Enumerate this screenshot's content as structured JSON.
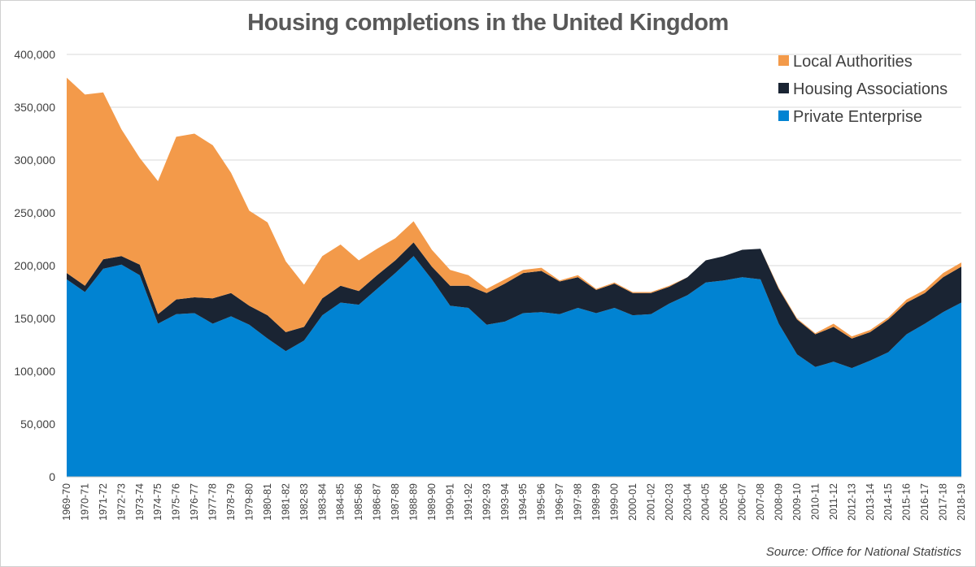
{
  "chart_data": {
    "type": "area",
    "stacked": true,
    "title": "Housing completions in the United Kingdom",
    "source": "Source: Office for National Statistics",
    "xlabel": "",
    "ylabel": "",
    "ylim": [
      0,
      400000
    ],
    "yticks": [
      "0",
      "50,000",
      "100,000",
      "150,000",
      "200,000",
      "250,000",
      "300,000",
      "350,000",
      "400,000"
    ],
    "grid": true,
    "legend_position": "top-right",
    "categories": [
      "1969-70",
      "1970-71",
      "1971-72",
      "1972-73",
      "1973-74",
      "1974-75",
      "1975-76",
      "1976-77",
      "1977-78",
      "1978-79",
      "1979-80",
      "1980-81",
      "1981-82",
      "1982-83",
      "1983-84",
      "1984-85",
      "1985-86",
      "1986-87",
      "1987-88",
      "1988-89",
      "1989-90",
      "1990-91",
      "1991-92",
      "1992-93",
      "1993-94",
      "1994-95",
      "1995-96",
      "1996-97",
      "1997-98",
      "1998-99",
      "1999-00",
      "2000-01",
      "2001-02",
      "2002-03",
      "2003-04",
      "2004-05",
      "2005-06",
      "2006-07",
      "2007-08",
      "2008-09",
      "2009-10",
      "2010-11",
      "2011-12",
      "2012-13",
      "2013-14",
      "2014-15",
      "2015-16",
      "2016-17",
      "2017-18",
      "2018-19"
    ],
    "series": [
      {
        "name": "Private Enterprise",
        "color": "#0183d2",
        "values": [
          187000,
          175000,
          197000,
          201000,
          191000,
          145000,
          154000,
          155000,
          145000,
          152000,
          144000,
          131000,
          119000,
          129000,
          153000,
          165000,
          163000,
          178000,
          193000,
          209000,
          187000,
          162000,
          160000,
          144000,
          147000,
          155000,
          156000,
          154000,
          160000,
          155000,
          160000,
          153000,
          154000,
          164000,
          172000,
          184000,
          186000,
          189000,
          187000,
          145000,
          116000,
          104000,
          109000,
          103000,
          110000,
          118000,
          135000,
          145000,
          156000,
          165000
        ]
      },
      {
        "name": "Housing Associations",
        "color": "#1a2433",
        "values": [
          6000,
          6000,
          9000,
          8000,
          10000,
          9000,
          14000,
          15000,
          24000,
          22000,
          18000,
          22000,
          18000,
          13000,
          16000,
          16000,
          13000,
          13000,
          12000,
          13000,
          12000,
          19000,
          21000,
          30000,
          36000,
          38000,
          39000,
          31000,
          29000,
          22000,
          23000,
          21000,
          20000,
          16000,
          17000,
          21000,
          23000,
          26000,
          29000,
          33000,
          33000,
          31000,
          33000,
          28000,
          27000,
          31000,
          30000,
          29000,
          33000,
          34000
        ]
      },
      {
        "name": "Local Authorities",
        "color": "#f39a4a",
        "values": [
          185000,
          181000,
          158000,
          120000,
          101000,
          126000,
          154000,
          155000,
          145000,
          114000,
          90000,
          88000,
          67000,
          40000,
          40000,
          39000,
          29000,
          25000,
          21000,
          20000,
          16000,
          15000,
          10000,
          4000,
          4000,
          3000,
          3000,
          1000,
          2000,
          1000,
          1000,
          1000,
          1000,
          1000,
          0,
          0,
          0,
          0,
          0,
          1000,
          1000,
          1000,
          3000,
          2000,
          2000,
          2000,
          3000,
          3000,
          4000,
          4000
        ]
      }
    ]
  }
}
